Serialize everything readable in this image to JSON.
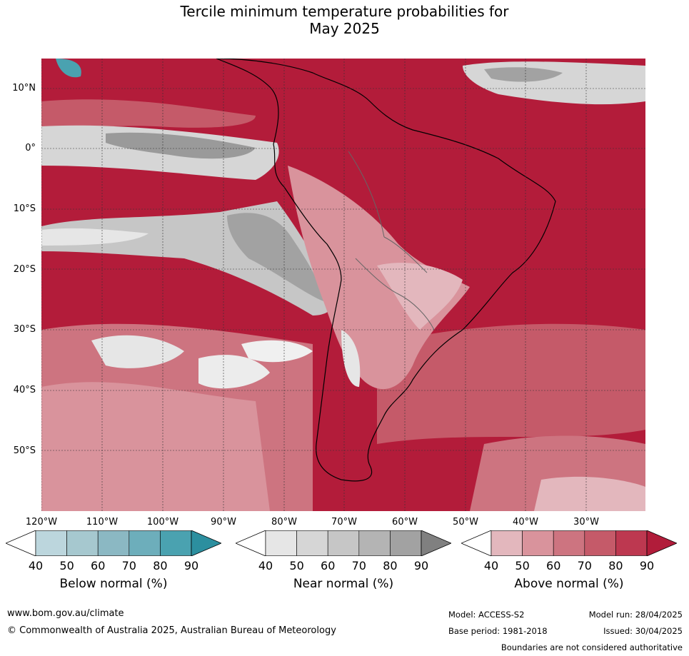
{
  "title_line1": "Tercile minimum temperature probabilities for",
  "title_line2": "May 2025",
  "lat_labels": [
    "10°N",
    "0°",
    "10°S",
    "20°S",
    "30°S",
    "40°S",
    "50°S"
  ],
  "lon_labels": [
    "120°W",
    "110°W",
    "100°W",
    "90°W",
    "80°W",
    "70°W",
    "60°W",
    "50°W",
    "40°W",
    "30°W"
  ],
  "legends": [
    {
      "name": "Below normal (%)",
      "ticks": [
        "40",
        "50",
        "60",
        "70",
        "80",
        "90"
      ],
      "colors": [
        "#ffffff",
        "#bcd6dd",
        "#a6c8cf",
        "#8bb8c3",
        "#6daebb",
        "#4aa2b0",
        "#2c8f9f"
      ]
    },
    {
      "name": "Near normal (%)",
      "ticks": [
        "40",
        "50",
        "60",
        "70",
        "80",
        "90"
      ],
      "colors": [
        "#ffffff",
        "#e6e6e6",
        "#d6d6d6",
        "#c6c6c6",
        "#b4b4b4",
        "#a2a2a2",
        "#808080"
      ]
    },
    {
      "name": "Above normal (%)",
      "ticks": [
        "40",
        "50",
        "60",
        "70",
        "80",
        "90"
      ],
      "colors": [
        "#ffffff",
        "#e3b7bd",
        "#d9939c",
        "#cd7480",
        "#c55a69",
        "#bd3850",
        "#b11c3a"
      ]
    }
  ],
  "footer": {
    "website": "www.bom.gov.au/climate",
    "copyright": "© Commonwealth of Australia 2025, Australian Bureau of Meteorology",
    "model": "Model: ACCESS-S2",
    "base_period": "Base period: 1981-2018",
    "model_run": "Model run: 28/04/2025",
    "issued": "Issued: 30/04/2025",
    "disclaimer": "Boundaries are not considered authoritative"
  }
}
